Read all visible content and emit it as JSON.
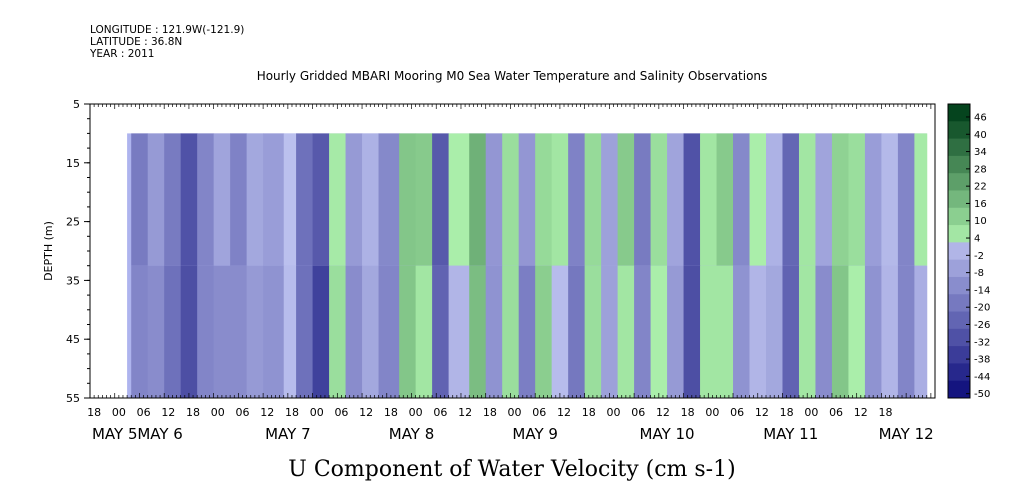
{
  "header": {
    "longitude": "LONGITUDE : 121.9W(-121.9)",
    "latitude": "LATITUDE : 36.8N",
    "year": "YEAR : 2011"
  },
  "chart_data": {
    "type": "heatmap",
    "title": "Hourly Gridded MBARI Mooring M0 Sea Water Temperature and Salinity Observations",
    "xlabel": "U Component of Water Velocity (cm s-1)",
    "ylabel": "DEPTH (m)",
    "y_axis": {
      "range": [
        5,
        55
      ],
      "inverted": true,
      "ticks": [
        5,
        15,
        25,
        35,
        45,
        55
      ]
    },
    "x_axis": {
      "range_hours": [
        0,
        205
      ],
      "hour_ticks": [
        "18",
        "00",
        "06",
        "12",
        "18",
        "00",
        "06",
        "12",
        "18",
        "00",
        "06",
        "12",
        "18",
        "00",
        "06",
        "12",
        "18",
        "00",
        "06",
        "12",
        "18",
        "00",
        "06",
        "12",
        "18",
        "00",
        "06",
        "12",
        "18",
        "00",
        "06",
        "12",
        "18"
      ],
      "date_labels": [
        {
          "text": "MAY  5",
          "hour": 6
        },
        {
          "text": "MAY  6",
          "hour": 17
        },
        {
          "text": "MAY  7",
          "hour": 48
        },
        {
          "text": "MAY  8",
          "hour": 78
        },
        {
          "text": "MAY  9",
          "hour": 108
        },
        {
          "text": "MAY 10",
          "hour": 140
        },
        {
          "text": "MAY 11",
          "hour": 170
        },
        {
          "text": "MAY 12",
          "hour": 198
        }
      ]
    },
    "data_extent": {
      "start_hour": 9,
      "end_hour": 203,
      "min_depth": 10,
      "max_depth": 55
    },
    "colorbar": {
      "labels": [
        "46",
        "40",
        "34",
        "28",
        "22",
        "16",
        "10",
        "4",
        "-2",
        "-8",
        "-14",
        "-20",
        "-26",
        "-32",
        "-38",
        "-44",
        "-50"
      ],
      "range": [
        -50,
        50
      ]
    },
    "bands": [
      {
        "hour": 10,
        "value": -14
      },
      {
        "hour": 14,
        "value": -8
      },
      {
        "hour": 18,
        "value": -20
      },
      {
        "hour": 22,
        "value": -26
      },
      {
        "hour": 26,
        "value": -14
      },
      {
        "hour": 30,
        "value": -8
      },
      {
        "hour": 34,
        "value": -12
      },
      {
        "hour": 38,
        "value": -4
      },
      {
        "hour": 42,
        "value": -10
      },
      {
        "hour": 47,
        "value": 6
      },
      {
        "hour": 50,
        "value": -20
      },
      {
        "hour": 54,
        "value": -30
      },
      {
        "hour": 58,
        "value": 8
      },
      {
        "hour": 62,
        "value": -8
      },
      {
        "hour": 66,
        "value": -4
      },
      {
        "hour": 70,
        "value": -10
      },
      {
        "hour": 75,
        "value": 14
      },
      {
        "hour": 79,
        "value": 10
      },
      {
        "hour": 83,
        "value": -24
      },
      {
        "hour": 87,
        "value": 4
      },
      {
        "hour": 92,
        "value": 16
      },
      {
        "hour": 96,
        "value": -6
      },
      {
        "hour": 100,
        "value": 8
      },
      {
        "hour": 104,
        "value": -12
      },
      {
        "hour": 108,
        "value": 12
      },
      {
        "hour": 112,
        "value": 6
      },
      {
        "hour": 116,
        "value": -18
      },
      {
        "hour": 120,
        "value": 12
      },
      {
        "hour": 124,
        "value": -6
      },
      {
        "hour": 128,
        "value": 10
      },
      {
        "hour": 132,
        "value": -14
      },
      {
        "hour": 136,
        "value": 8
      },
      {
        "hour": 140,
        "value": -8
      },
      {
        "hour": 144,
        "value": -26
      },
      {
        "hour": 148,
        "value": 6
      },
      {
        "hour": 152,
        "value": 10
      },
      {
        "hour": 156,
        "value": -10
      },
      {
        "hour": 160,
        "value": 4
      },
      {
        "hour": 164,
        "value": -4
      },
      {
        "hour": 168,
        "value": -20
      },
      {
        "hour": 172,
        "value": 6
      },
      {
        "hour": 176,
        "value": -8
      },
      {
        "hour": 180,
        "value": 14
      },
      {
        "hour": 184,
        "value": 8
      },
      {
        "hour": 188,
        "value": -10
      },
      {
        "hour": 192,
        "value": 4
      },
      {
        "hour": 196,
        "value": -14
      },
      {
        "hour": 200,
        "value": 2
      }
    ]
  }
}
